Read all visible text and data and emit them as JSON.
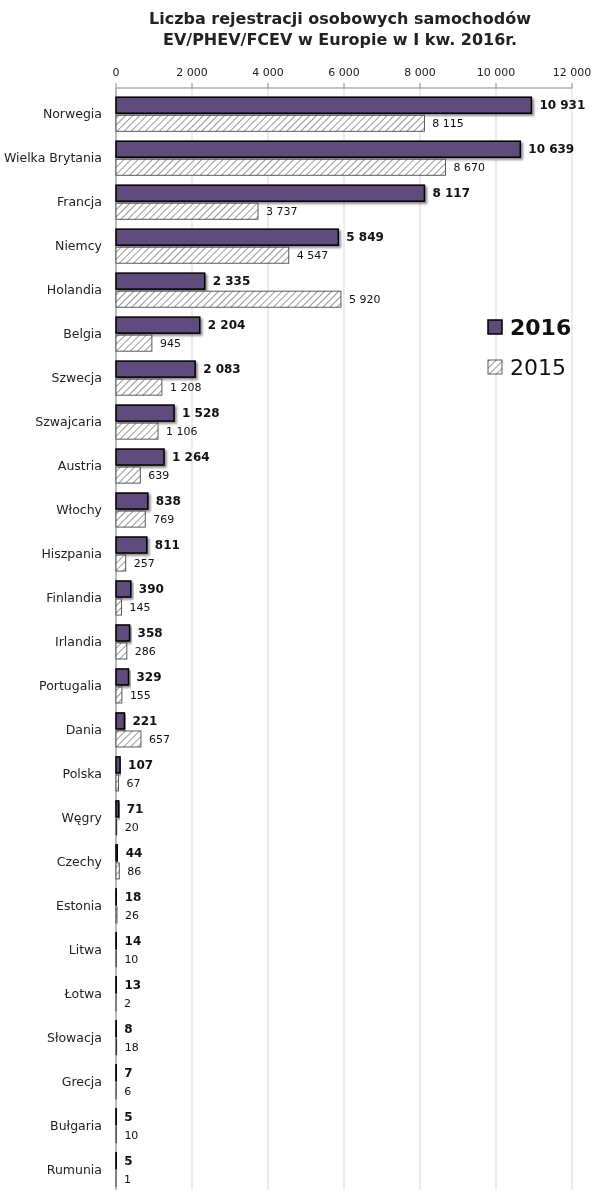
{
  "chart_data": {
    "type": "bar",
    "orientation": "horizontal",
    "title": "Liczba rejestracji osobowych samochodów EV/PHEV/FCEV w Europie w I kw. 2016r.",
    "categories": [
      "Norwegia",
      "Wielka Brytania",
      "Francja",
      "Niemcy",
      "Holandia",
      "Belgia",
      "Szwecja",
      "Szwajcaria",
      "Austria",
      "Włochy",
      "Hiszpania",
      "Finlandia",
      "Irlandia",
      "Portugalia",
      "Dania",
      "Polska",
      "Węgry",
      "Czechy",
      "Estonia",
      "Litwa",
      "Łotwa",
      "Słowacja",
      "Grecja",
      "Bułgaria",
      "Rumunia"
    ],
    "series": [
      {
        "name": "2016",
        "color": "#5e4b7c",
        "values": [
          10931,
          10639,
          8117,
          5849,
          2335,
          2204,
          2083,
          1528,
          1264,
          838,
          811,
          390,
          358,
          329,
          221,
          107,
          71,
          44,
          18,
          14,
          13,
          8,
          7,
          5,
          5
        ]
      },
      {
        "name": "2015",
        "color": "#333333",
        "values": [
          8115,
          8670,
          3737,
          4547,
          5920,
          945,
          1208,
          1106,
          639,
          769,
          257,
          145,
          286,
          155,
          657,
          67,
          20,
          86,
          26,
          10,
          2,
          18,
          6,
          10,
          1
        ]
      }
    ],
    "xlim": [
      0,
      12000
    ],
    "xticks": [
      0,
      {
        "value": 2000,
        "label": "2 000"
      },
      {
        "value": 4000,
        "label": "4 000"
      },
      {
        "value": 6000,
        "label": "6 000"
      },
      {
        "value": 8000,
        "label": "8 000"
      },
      {
        "value": 10000,
        "label": "10 000"
      },
      {
        "value": 12000,
        "label": "12 000"
      }
    ],
    "grid": true,
    "legend": "right",
    "data_labels": true
  }
}
